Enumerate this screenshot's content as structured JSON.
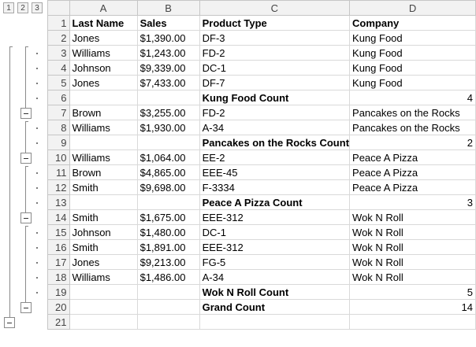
{
  "outline_levels": [
    "1",
    "2",
    "3"
  ],
  "columns": [
    "A",
    "B",
    "C",
    "D"
  ],
  "rows": [
    {
      "n": "1",
      "a": "Last Name",
      "b": "Sales",
      "c": "Product Type",
      "d": "Company",
      "header": true
    },
    {
      "n": "2",
      "a": "Jones",
      "b": "$1,390.00",
      "c": "DF-3",
      "d": "Kung Food"
    },
    {
      "n": "3",
      "a": "Williams",
      "b": "$1,243.00",
      "c": "FD-2",
      "d": "Kung Food"
    },
    {
      "n": "4",
      "a": "Johnson",
      "b": "$9,339.00",
      "c": "DC-1",
      "d": "Kung Food"
    },
    {
      "n": "5",
      "a": "Jones",
      "b": "$7,433.00",
      "c": "DF-7",
      "d": "Kung Food"
    },
    {
      "n": "6",
      "a": "",
      "b": "",
      "c": "Kung Food Count",
      "d": "4",
      "subtotal": true
    },
    {
      "n": "7",
      "a": "Brown",
      "b": "$3,255.00",
      "c": "FD-2",
      "d": "Pancakes on the Rocks"
    },
    {
      "n": "8",
      "a": "Williams",
      "b": "$1,930.00",
      "c": "A-34",
      "d": "Pancakes on the Rocks"
    },
    {
      "n": "9",
      "a": "",
      "b": "",
      "c": "Pancakes on the Rocks Count",
      "d": "2",
      "subtotal": true
    },
    {
      "n": "10",
      "a": "Williams",
      "b": "$1,064.00",
      "c": "EE-2",
      "d": "Peace A Pizza"
    },
    {
      "n": "11",
      "a": "Brown",
      "b": "$4,865.00",
      "c": "EEE-45",
      "d": "Peace A Pizza"
    },
    {
      "n": "12",
      "a": "Smith",
      "b": "$9,698.00",
      "c": "F-3334",
      "d": "Peace A Pizza"
    },
    {
      "n": "13",
      "a": "",
      "b": "",
      "c": "Peace A Pizza Count",
      "d": "3",
      "subtotal": true
    },
    {
      "n": "14",
      "a": "Smith",
      "b": "$1,675.00",
      "c": "EEE-312",
      "d": "Wok N Roll"
    },
    {
      "n": "15",
      "a": "Johnson",
      "b": "$1,480.00",
      "c": "DC-1",
      "d": "Wok N Roll"
    },
    {
      "n": "16",
      "a": "Smith",
      "b": "$1,891.00",
      "c": "EEE-312",
      "d": "Wok N Roll"
    },
    {
      "n": "17",
      "a": "Jones",
      "b": "$9,213.00",
      "c": "FG-5",
      "d": "Wok N Roll"
    },
    {
      "n": "18",
      "a": "Williams",
      "b": "$1,486.00",
      "c": "A-34",
      "d": "Wok N Roll"
    },
    {
      "n": "19",
      "a": "",
      "b": "",
      "c": "Wok N Roll Count",
      "d": "5",
      "subtotal": true
    },
    {
      "n": "20",
      "a": "",
      "b": "",
      "c": "Grand Count",
      "d": "14",
      "subtotal": true
    },
    {
      "n": "21",
      "a": "",
      "b": "",
      "c": "",
      "d": ""
    }
  ]
}
